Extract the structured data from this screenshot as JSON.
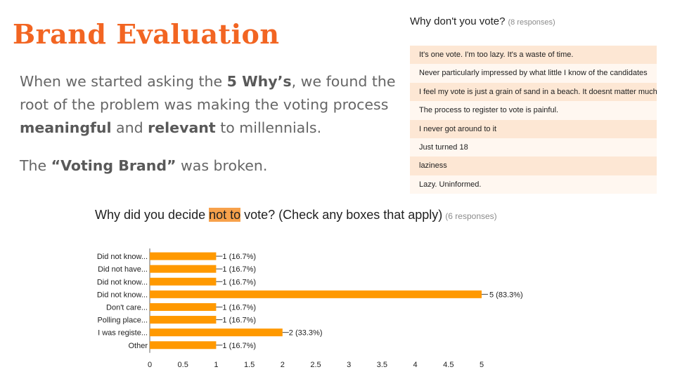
{
  "title": "Brand Evaluation",
  "body": {
    "p1_pre": "When we started asking the ",
    "p1_b1": "5 Why’s",
    "p1_mid1": ", we found the root of the problem was making the voting process ",
    "p1_b2": "meaningful",
    "p1_mid2": " and ",
    "p1_b3": "relevant",
    "p1_post": " to millennials.",
    "p2_pre": "The ",
    "p2_b": "“Voting Brand”",
    "p2_post": " was broken."
  },
  "responses_panel": {
    "question": "Why don't you vote?",
    "count": "(8 responses)",
    "items": [
      "It's one vote. I'm too lazy. It's a waste of time.",
      "Never particularly impressed by what little I know of the candidates",
      "I feel my vote is just a grain of sand in a beach. It doesnt matter much",
      "The process to register to vote is painful.",
      "I never got around to it",
      "Just turned 18",
      "laziness",
      "Lazy. Uninformed."
    ]
  },
  "chart_header": {
    "pre": "Why did you decide ",
    "highlight": "not to",
    "post": " vote? (Check any boxes that apply)",
    "count": "(6 responses)"
  },
  "chart_data": {
    "type": "bar",
    "orientation": "horizontal",
    "categories": [
      "Did not know...",
      "Did not have...",
      "Did not know...",
      "Did not know...",
      "Don't care...",
      "Polling place...",
      "I was registe...",
      "Other"
    ],
    "values": [
      1,
      1,
      1,
      5,
      1,
      1,
      2,
      1
    ],
    "value_labels": [
      "1 (16.7%)",
      "1 (16.7%)",
      "1 (16.7%)",
      "5 (83.3%)",
      "1 (16.7%)",
      "1 (16.7%)",
      "2 (33.3%)",
      "1 (16.7%)"
    ],
    "xlim": [
      0,
      5
    ],
    "xticks": [
      "0",
      "0.5",
      "1",
      "1.5",
      "2",
      "2.5",
      "3",
      "3.5",
      "4",
      "4.5",
      "5"
    ],
    "grid": false,
    "bar_color": "#ff9900"
  },
  "colors": {
    "title": "#f26522",
    "highlight": "#f7a14b",
    "row_odd": "#fde7d4",
    "row_even": "#fff7f0"
  }
}
